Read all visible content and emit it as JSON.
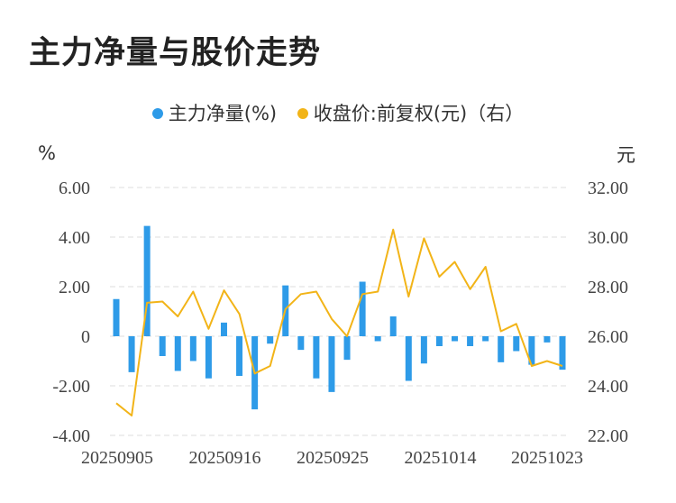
{
  "title": "主力净量与股价走势",
  "legend": {
    "series1": "主力净量(%)",
    "series2": "收盘价:前复权(元)（右）"
  },
  "units": {
    "left": "%",
    "right": "元"
  },
  "colors": {
    "bar": "#2e9be8",
    "line": "#f2b418",
    "grid": "#dcdcdc",
    "axis_text": "#444444"
  },
  "chart_data": {
    "type": "bar+line",
    "x_tick_labels": [
      "20250905",
      "20250916",
      "20250925",
      "20251014",
      "20251023"
    ],
    "left_axis": {
      "ticks": [
        "6.00",
        "4.00",
        "2.00",
        "0",
        "-2.00",
        "-4.00"
      ],
      "ylim": [
        -4,
        6
      ]
    },
    "right_axis": {
      "ticks": [
        "32.00",
        "30.00",
        "28.00",
        "26.00",
        "24.00",
        "22.00"
      ],
      "ylim": [
        22,
        32
      ]
    },
    "grid": true,
    "series": [
      {
        "name": "主力净量(%)",
        "type": "bar",
        "axis": "left",
        "values": [
          1.5,
          -1.45,
          4.45,
          -0.8,
          -1.4,
          -1.0,
          -1.7,
          0.55,
          -1.6,
          -2.95,
          -0.3,
          2.05,
          -0.55,
          -1.7,
          -2.25,
          -0.95,
          2.2,
          -0.2,
          0.8,
          -1.8,
          -1.1,
          -0.4,
          -0.2,
          -0.4,
          -0.2,
          -1.05,
          -0.6,
          -1.15,
          -0.25,
          -1.35
        ]
      },
      {
        "name": "收盘价:前复权(元)（右）",
        "type": "line",
        "axis": "right",
        "values": [
          23.3,
          22.8,
          27.35,
          27.4,
          26.8,
          27.8,
          26.3,
          27.85,
          26.9,
          24.5,
          24.8,
          27.1,
          27.7,
          27.8,
          26.7,
          26.0,
          27.7,
          27.8,
          30.3,
          27.6,
          29.95,
          28.4,
          29.0,
          27.9,
          28.8,
          26.2,
          26.5,
          24.8,
          25.0,
          24.8
        ]
      }
    ]
  }
}
